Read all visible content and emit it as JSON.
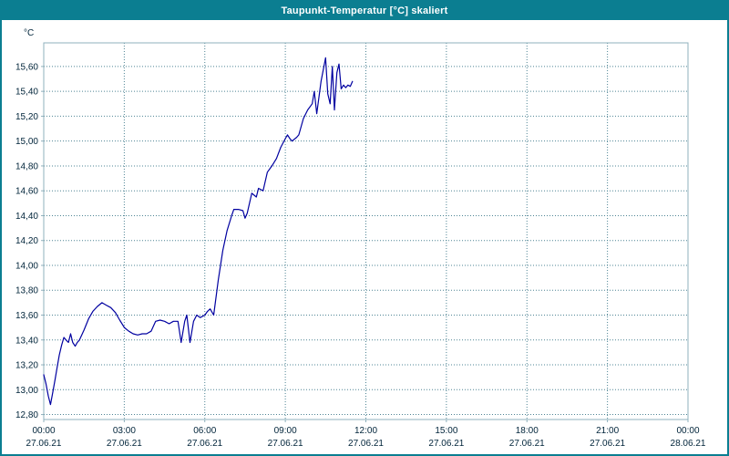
{
  "window": {
    "title": "Taupunkt-Temperatur [°C] skaliert"
  },
  "colors": {
    "titlebar": "#0b7e91",
    "window_border": "#0b7e91",
    "plot_border": "#8fb0bc",
    "grid": "#4e8494",
    "line": "#0000a0",
    "text": "#00243a"
  },
  "chart_data": {
    "type": "line",
    "title": "Taupunkt-Temperatur [°C] skaliert",
    "xlabel": "",
    "ylabel": "°C",
    "ylim": [
      12.8,
      15.6
    ],
    "y_axis_range": [
      12.76,
      15.79
    ],
    "xlim_hours": [
      0,
      24
    ],
    "grid": "dotted",
    "legend": "none",
    "y_ticks": [
      {
        "label": "12,80",
        "value": 12.8
      },
      {
        "label": "13,00",
        "value": 13.0
      },
      {
        "label": "13,20",
        "value": 13.2
      },
      {
        "label": "13,40",
        "value": 13.4
      },
      {
        "label": "13,60",
        "value": 13.6
      },
      {
        "label": "13,80",
        "value": 13.8
      },
      {
        "label": "14,00",
        "value": 14.0
      },
      {
        "label": "14,20",
        "value": 14.2
      },
      {
        "label": "14,40",
        "value": 14.4
      },
      {
        "label": "14,60",
        "value": 14.6
      },
      {
        "label": "14,80",
        "value": 14.8
      },
      {
        "label": "15,00",
        "value": 15.0
      },
      {
        "label": "15,20",
        "value": 15.2
      },
      {
        "label": "15,40",
        "value": 15.4
      },
      {
        "label": "15,60",
        "value": 15.6
      }
    ],
    "x_ticks": [
      {
        "hour": 0,
        "time": "00:00",
        "date": "27.06.21"
      },
      {
        "hour": 3,
        "time": "03:00",
        "date": "27.06.21"
      },
      {
        "hour": 6,
        "time": "06:00",
        "date": "27.06.21"
      },
      {
        "hour": 9,
        "time": "09:00",
        "date": "27.06.21"
      },
      {
        "hour": 12,
        "time": "12:00",
        "date": "27.06.21"
      },
      {
        "hour": 15,
        "time": "15:00",
        "date": "27.06.21"
      },
      {
        "hour": 18,
        "time": "18:00",
        "date": "27.06.21"
      },
      {
        "hour": 21,
        "time": "21:00",
        "date": "27.06.21"
      },
      {
        "hour": 24,
        "time": "00:00",
        "date": "28.06.21"
      }
    ],
    "series": [
      {
        "name": "Taupunkt-Temperatur",
        "color": "#0000a0",
        "points": [
          [
            0.0,
            13.12
          ],
          [
            0.08,
            13.05
          ],
          [
            0.17,
            12.95
          ],
          [
            0.25,
            12.88
          ],
          [
            0.33,
            12.97
          ],
          [
            0.42,
            13.08
          ],
          [
            0.5,
            13.18
          ],
          [
            0.58,
            13.28
          ],
          [
            0.67,
            13.36
          ],
          [
            0.75,
            13.42
          ],
          [
            0.83,
            13.4
          ],
          [
            0.92,
            13.38
          ],
          [
            1.0,
            13.45
          ],
          [
            1.08,
            13.38
          ],
          [
            1.17,
            13.35
          ],
          [
            1.25,
            13.38
          ],
          [
            1.33,
            13.4
          ],
          [
            1.5,
            13.48
          ],
          [
            1.67,
            13.57
          ],
          [
            1.83,
            13.63
          ],
          [
            2.0,
            13.67
          ],
          [
            2.17,
            13.7
          ],
          [
            2.33,
            13.68
          ],
          [
            2.5,
            13.66
          ],
          [
            2.67,
            13.62
          ],
          [
            2.83,
            13.56
          ],
          [
            3.0,
            13.5
          ],
          [
            3.17,
            13.47
          ],
          [
            3.33,
            13.45
          ],
          [
            3.5,
            13.44
          ],
          [
            3.67,
            13.45
          ],
          [
            3.83,
            13.45
          ],
          [
            4.0,
            13.47
          ],
          [
            4.17,
            13.55
          ],
          [
            4.33,
            13.56
          ],
          [
            4.5,
            13.55
          ],
          [
            4.67,
            13.53
          ],
          [
            4.83,
            13.55
          ],
          [
            5.0,
            13.55
          ],
          [
            5.12,
            13.38
          ],
          [
            5.25,
            13.55
          ],
          [
            5.33,
            13.6
          ],
          [
            5.45,
            13.38
          ],
          [
            5.58,
            13.55
          ],
          [
            5.7,
            13.6
          ],
          [
            5.83,
            13.58
          ],
          [
            6.0,
            13.6
          ],
          [
            6.1,
            13.63
          ],
          [
            6.2,
            13.65
          ],
          [
            6.33,
            13.6
          ],
          [
            6.5,
            13.88
          ],
          [
            6.67,
            14.12
          ],
          [
            6.83,
            14.28
          ],
          [
            7.0,
            14.4
          ],
          [
            7.08,
            14.45
          ],
          [
            7.25,
            14.45
          ],
          [
            7.42,
            14.44
          ],
          [
            7.5,
            14.38
          ],
          [
            7.58,
            14.42
          ],
          [
            7.75,
            14.58
          ],
          [
            7.92,
            14.55
          ],
          [
            8.0,
            14.62
          ],
          [
            8.17,
            14.6
          ],
          [
            8.33,
            14.75
          ],
          [
            8.5,
            14.8
          ],
          [
            8.67,
            14.86
          ],
          [
            8.83,
            14.95
          ],
          [
            9.0,
            15.02
          ],
          [
            9.08,
            15.05
          ],
          [
            9.17,
            15.02
          ],
          [
            9.25,
            15.0
          ],
          [
            9.42,
            15.03
          ],
          [
            9.5,
            15.05
          ],
          [
            9.67,
            15.18
          ],
          [
            9.83,
            15.25
          ],
          [
            10.0,
            15.3
          ],
          [
            10.08,
            15.4
          ],
          [
            10.17,
            15.22
          ],
          [
            10.33,
            15.48
          ],
          [
            10.5,
            15.67
          ],
          [
            10.58,
            15.38
          ],
          [
            10.67,
            15.3
          ],
          [
            10.75,
            15.6
          ],
          [
            10.83,
            15.25
          ],
          [
            10.92,
            15.55
          ],
          [
            11.0,
            15.62
          ],
          [
            11.08,
            15.42
          ],
          [
            11.17,
            15.45
          ],
          [
            11.25,
            15.43
          ],
          [
            11.33,
            15.45
          ],
          [
            11.42,
            15.44
          ],
          [
            11.5,
            15.48
          ]
        ]
      }
    ]
  }
}
